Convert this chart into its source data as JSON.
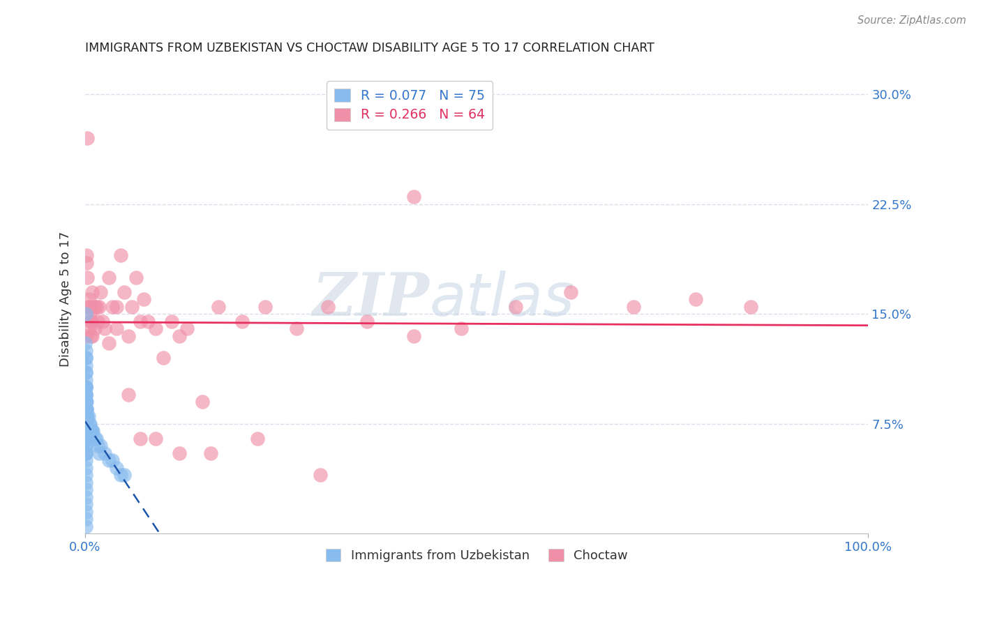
{
  "title": "IMMIGRANTS FROM UZBEKISTAN VS CHOCTAW DISABILITY AGE 5 TO 17 CORRELATION CHART",
  "source": "Source: ZipAtlas.com",
  "xlabel_ticks": [
    "0.0%",
    "100.0%"
  ],
  "ylabel_ticks": [
    "7.5%",
    "15.0%",
    "22.5%",
    "30.0%"
  ],
  "ylabel_label": "Disability Age 5 to 17",
  "legend_label_uz": "R = 0.077   N = 75",
  "legend_label_ch": "R = 0.266   N = 64",
  "legend_bottom_uz": "Immigrants from Uzbekistan",
  "legend_bottom_ch": "Choctaw",
  "uzbekistan_color": "#88bbee",
  "choctaw_color": "#f090a8",
  "uzbekistan_line_color": "#1a55aa",
  "choctaw_line_color": "#e83060",
  "xlim": [
    0.0,
    1.0
  ],
  "ylim": [
    0.0,
    0.32
  ],
  "uzbekistan_x": [
    0.0005,
    0.0005,
    0.0005,
    0.0005,
    0.0005,
    0.0005,
    0.0005,
    0.0005,
    0.0005,
    0.0005,
    0.0005,
    0.0005,
    0.0005,
    0.0005,
    0.0005,
    0.0005,
    0.0005,
    0.0005,
    0.0005,
    0.0005,
    0.0005,
    0.0005,
    0.0005,
    0.0005,
    0.0005,
    0.0005,
    0.0005,
    0.0005,
    0.0005,
    0.0005,
    0.001,
    0.001,
    0.001,
    0.001,
    0.001,
    0.001,
    0.001,
    0.001,
    0.001,
    0.001,
    0.0015,
    0.0015,
    0.0015,
    0.0015,
    0.002,
    0.002,
    0.002,
    0.003,
    0.003,
    0.004,
    0.004,
    0.005,
    0.005,
    0.006,
    0.007,
    0.008,
    0.009,
    0.01,
    0.012,
    0.014,
    0.016,
    0.018,
    0.02,
    0.025,
    0.03,
    0.035,
    0.04,
    0.045,
    0.05,
    0.0008,
    0.0006,
    0.0007,
    0.0009,
    0.0004,
    0.0003
  ],
  "uzbekistan_y": [
    0.1,
    0.095,
    0.09,
    0.085,
    0.08,
    0.075,
    0.07,
    0.065,
    0.06,
    0.055,
    0.05,
    0.045,
    0.04,
    0.035,
    0.03,
    0.025,
    0.02,
    0.015,
    0.01,
    0.005,
    0.11,
    0.105,
    0.115,
    0.12,
    0.125,
    0.095,
    0.085,
    0.075,
    0.065,
    0.055,
    0.1,
    0.095,
    0.09,
    0.085,
    0.08,
    0.075,
    0.07,
    0.065,
    0.06,
    0.055,
    0.09,
    0.085,
    0.075,
    0.065,
    0.085,
    0.08,
    0.07,
    0.08,
    0.07,
    0.08,
    0.07,
    0.075,
    0.065,
    0.075,
    0.07,
    0.07,
    0.07,
    0.07,
    0.065,
    0.065,
    0.06,
    0.055,
    0.06,
    0.055,
    0.05,
    0.05,
    0.045,
    0.04,
    0.04,
    0.15,
    0.12,
    0.11,
    0.1,
    0.1,
    0.13
  ],
  "choctaw_x": [
    0.001,
    0.002,
    0.002,
    0.003,
    0.003,
    0.004,
    0.005,
    0.005,
    0.006,
    0.007,
    0.008,
    0.009,
    0.01,
    0.012,
    0.015,
    0.018,
    0.02,
    0.025,
    0.03,
    0.035,
    0.04,
    0.045,
    0.05,
    0.055,
    0.06,
    0.065,
    0.07,
    0.075,
    0.08,
    0.09,
    0.1,
    0.11,
    0.12,
    0.13,
    0.15,
    0.17,
    0.2,
    0.23,
    0.27,
    0.31,
    0.36,
    0.42,
    0.48,
    0.55,
    0.62,
    0.7,
    0.78,
    0.85,
    0.005,
    0.007,
    0.009,
    0.012,
    0.016,
    0.022,
    0.03,
    0.04,
    0.055,
    0.07,
    0.09,
    0.12,
    0.16,
    0.22,
    0.3,
    0.42
  ],
  "choctaw_y": [
    0.135,
    0.19,
    0.185,
    0.27,
    0.175,
    0.155,
    0.16,
    0.14,
    0.15,
    0.135,
    0.145,
    0.165,
    0.155,
    0.14,
    0.155,
    0.155,
    0.165,
    0.14,
    0.175,
    0.155,
    0.155,
    0.19,
    0.165,
    0.135,
    0.155,
    0.175,
    0.145,
    0.16,
    0.145,
    0.14,
    0.12,
    0.145,
    0.135,
    0.14,
    0.09,
    0.155,
    0.145,
    0.155,
    0.14,
    0.155,
    0.145,
    0.135,
    0.14,
    0.155,
    0.165,
    0.155,
    0.16,
    0.155,
    0.155,
    0.145,
    0.135,
    0.155,
    0.145,
    0.145,
    0.13,
    0.14,
    0.095,
    0.065,
    0.065,
    0.055,
    0.055,
    0.065,
    0.04,
    0.23
  ],
  "watermark_zip": "ZIP",
  "watermark_atlas": "atlas",
  "background_color": "#ffffff",
  "grid_color": "#ddddee"
}
